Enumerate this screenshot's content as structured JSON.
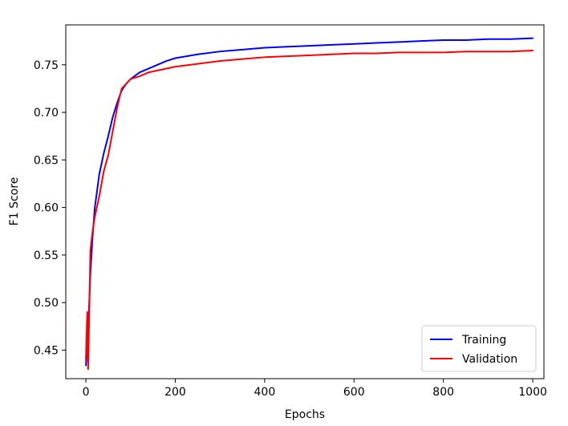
{
  "chart_data": {
    "type": "line",
    "title": "",
    "xlabel": "Epochs",
    "ylabel": "F1 Score",
    "xlim": [
      -45,
      1025
    ],
    "ylim": [
      0.42,
      0.792
    ],
    "xticks": [
      0,
      200,
      400,
      600,
      800,
      1000
    ],
    "yticks": [
      0.45,
      0.5,
      0.55,
      0.6,
      0.65,
      0.7,
      0.75
    ],
    "grid": false,
    "legend_position": "lower-right",
    "series": [
      {
        "name": "Training",
        "color": "#0000ff",
        "x": [
          0,
          5,
          10,
          15,
          20,
          30,
          40,
          50,
          60,
          70,
          80,
          90,
          100,
          120,
          140,
          160,
          180,
          200,
          250,
          300,
          350,
          400,
          450,
          500,
          550,
          600,
          650,
          700,
          750,
          800,
          850,
          900,
          950,
          1000
        ],
        "y": [
          0.434,
          0.47,
          0.53,
          0.57,
          0.6,
          0.635,
          0.657,
          0.675,
          0.695,
          0.71,
          0.723,
          0.73,
          0.735,
          0.742,
          0.746,
          0.75,
          0.754,
          0.757,
          0.761,
          0.764,
          0.766,
          0.768,
          0.769,
          0.77,
          0.771,
          0.772,
          0.773,
          0.774,
          0.775,
          0.776,
          0.776,
          0.777,
          0.777,
          0.778
        ]
      },
      {
        "name": "Validation",
        "color": "#ff0000",
        "x": [
          0,
          3,
          5,
          8,
          10,
          15,
          20,
          30,
          40,
          50,
          60,
          70,
          80,
          90,
          100,
          120,
          140,
          160,
          180,
          200,
          250,
          300,
          350,
          400,
          450,
          500,
          550,
          600,
          650,
          700,
          750,
          800,
          850,
          900,
          950,
          1000
        ],
        "y": [
          0.44,
          0.49,
          0.43,
          0.5,
          0.555,
          0.575,
          0.59,
          0.612,
          0.638,
          0.655,
          0.68,
          0.705,
          0.725,
          0.73,
          0.735,
          0.738,
          0.742,
          0.744,
          0.746,
          0.748,
          0.751,
          0.754,
          0.756,
          0.758,
          0.759,
          0.76,
          0.761,
          0.762,
          0.762,
          0.763,
          0.763,
          0.763,
          0.764,
          0.764,
          0.764,
          0.765
        ]
      }
    ]
  }
}
